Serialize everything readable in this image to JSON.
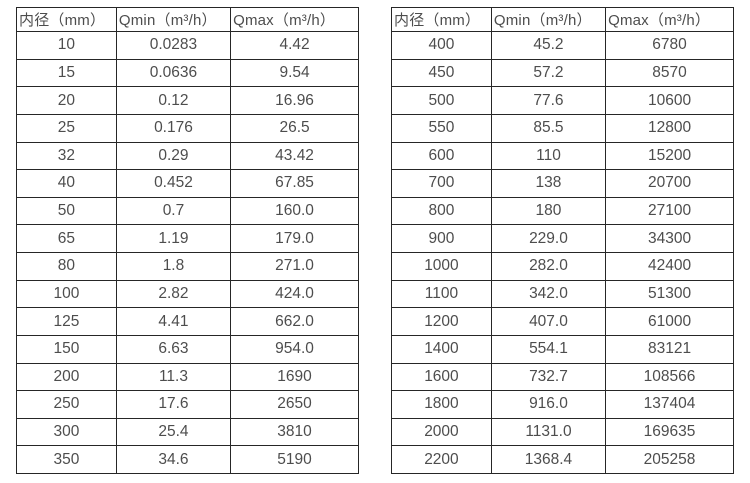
{
  "colors": {
    "background": "#ffffff",
    "border": "#262626",
    "text": "#4d4d4d"
  },
  "tables": [
    {
      "name": "small-diameter-table",
      "headers": [
        "内径（mm）",
        "Qmin（m³/h）",
        "Qmax（m³/h）"
      ],
      "rows": [
        [
          "10",
          "0.0283",
          "4.42"
        ],
        [
          "15",
          "0.0636",
          "9.54"
        ],
        [
          "20",
          "0.12",
          "16.96"
        ],
        [
          "25",
          "0.176",
          "26.5"
        ],
        [
          "32",
          "0.29",
          "43.42"
        ],
        [
          "40",
          "0.452",
          "67.85"
        ],
        [
          "50",
          "0.7",
          "160.0"
        ],
        [
          "65",
          "1.19",
          "179.0"
        ],
        [
          "80",
          "1.8",
          "271.0"
        ],
        [
          "100",
          "2.82",
          "424.0"
        ],
        [
          "125",
          "4.41",
          "662.0"
        ],
        [
          "150",
          "6.63",
          "954.0"
        ],
        [
          "200",
          "11.3",
          "1690"
        ],
        [
          "250",
          "17.6",
          "2650"
        ],
        [
          "300",
          "25.4",
          "3810"
        ],
        [
          "350",
          "34.6",
          "5190"
        ]
      ]
    },
    {
      "name": "large-diameter-table",
      "headers": [
        "内径（mm）",
        "Qmin（m³/h）",
        "Qmax（m³/h）"
      ],
      "rows": [
        [
          "400",
          "45.2",
          "6780"
        ],
        [
          "450",
          "57.2",
          "8570"
        ],
        [
          "500",
          "77.6",
          "10600"
        ],
        [
          "550",
          "85.5",
          "12800"
        ],
        [
          "600",
          "110",
          "15200"
        ],
        [
          "700",
          "138",
          "20700"
        ],
        [
          "800",
          "180",
          "27100"
        ],
        [
          "900",
          "229.0",
          "34300"
        ],
        [
          "1000",
          "282.0",
          "42400"
        ],
        [
          "1100",
          "342.0",
          "51300"
        ],
        [
          "1200",
          "407.0",
          "61000"
        ],
        [
          "1400",
          "554.1",
          "83121"
        ],
        [
          "1600",
          "732.7",
          "108566"
        ],
        [
          "1800",
          "916.0",
          "137404"
        ],
        [
          "2000",
          "1131.0",
          "169635"
        ],
        [
          "2200",
          "1368.4",
          "205258"
        ]
      ]
    }
  ]
}
